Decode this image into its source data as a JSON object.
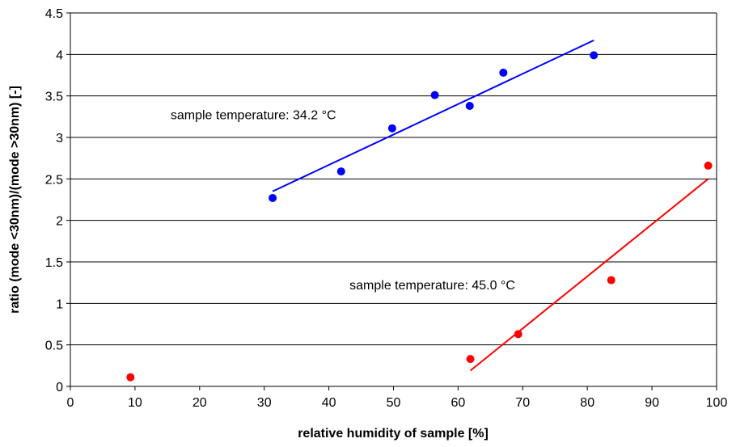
{
  "chart_data": {
    "type": "scatter",
    "title": "",
    "xlabel": "relative humidity of sample [%]",
    "ylabel": "ratio (mode <30nm)/(mode >30nm) [-]",
    "xlim": [
      0,
      100
    ],
    "ylim": [
      0,
      4.5
    ],
    "xticks": [
      0,
      10,
      20,
      30,
      40,
      50,
      60,
      70,
      80,
      90,
      100
    ],
    "yticks": [
      0,
      0.5,
      1,
      1.5,
      2,
      2.5,
      3,
      3.5,
      4,
      4.5
    ],
    "ytick_labels": [
      "0",
      "0.5",
      "1",
      "1.5",
      "2",
      "2.5",
      "3",
      "3.5",
      "4",
      "4.5"
    ],
    "grid": "horizontal",
    "series": [
      {
        "color": "#0000ff",
        "points": [
          {
            "x": 31.3,
            "y": 2.27
          },
          {
            "x": 41.9,
            "y": 2.59
          },
          {
            "x": 49.8,
            "y": 3.11
          },
          {
            "x": 56.4,
            "y": 3.51
          },
          {
            "x": 61.8,
            "y": 3.38
          },
          {
            "x": 67.0,
            "y": 3.78
          },
          {
            "x": 81.0,
            "y": 3.99
          }
        ],
        "trendline": {
          "x": [
            31.3,
            81.0
          ],
          "y": [
            2.35,
            4.17
          ]
        }
      },
      {
        "color": "#ff0000",
        "points": [
          {
            "x": 9.3,
            "y": 0.11
          },
          {
            "x": 61.9,
            "y": 0.33
          },
          {
            "x": 69.3,
            "y": 0.63
          },
          {
            "x": 83.7,
            "y": 1.28
          },
          {
            "x": 98.7,
            "y": 2.66
          }
        ],
        "trendline": {
          "x": [
            61.9,
            98.7
          ],
          "y": [
            0.19,
            2.5
          ]
        }
      }
    ],
    "annotations": [
      {
        "text": "sample temperature: 34.2 °C",
        "x": 15.5,
        "y": 3.22
      },
      {
        "text": "sample temperature: 45.0 °C",
        "x": 43.2,
        "y": 1.17
      }
    ]
  }
}
